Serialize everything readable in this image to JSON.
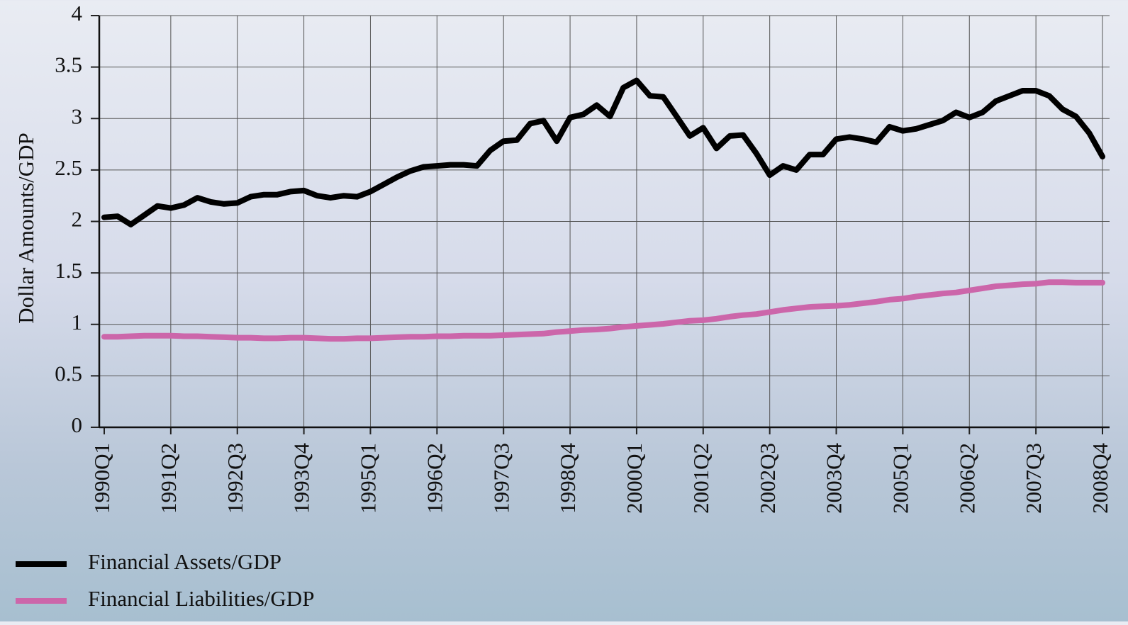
{
  "chart_data": {
    "type": "line",
    "y_label": "Dollar Amounts/GDP",
    "categories": [
      "1990Q1",
      null,
      null,
      null,
      null,
      "1991Q2",
      null,
      null,
      null,
      null,
      "1992Q3",
      null,
      null,
      null,
      null,
      "1993Q4",
      null,
      null,
      null,
      null,
      "1995Q1",
      null,
      null,
      null,
      null,
      "1996Q2",
      null,
      null,
      null,
      null,
      "1997Q3",
      null,
      null,
      null,
      null,
      "1998Q4",
      null,
      null,
      null,
      null,
      "2000Q1",
      null,
      null,
      null,
      null,
      "2001Q2",
      null,
      null,
      null,
      null,
      "2002Q3",
      null,
      null,
      null,
      null,
      "2003Q4",
      null,
      null,
      null,
      null,
      "2005Q1",
      null,
      null,
      null,
      null,
      "2006Q2",
      null,
      null,
      null,
      null,
      "2007Q3",
      null,
      null,
      null,
      null,
      "2008Q4"
    ],
    "series": [
      {
        "name": "Financial Assets/GDP",
        "color": "#000000",
        "values": [
          2.04,
          2.05,
          1.97,
          2.06,
          2.15,
          2.13,
          2.16,
          2.23,
          2.19,
          2.17,
          2.18,
          2.24,
          2.26,
          2.26,
          2.29,
          2.3,
          2.25,
          2.23,
          2.25,
          2.24,
          2.29,
          2.36,
          2.43,
          2.49,
          2.53,
          2.54,
          2.55,
          2.55,
          2.54,
          2.69,
          2.78,
          2.79,
          2.95,
          2.98,
          2.78,
          3.01,
          3.04,
          3.13,
          3.02,
          3.3,
          3.37,
          3.22,
          3.21,
          3.02,
          2.83,
          2.91,
          2.71,
          2.83,
          2.84,
          2.66,
          2.45,
          2.54,
          2.5,
          2.65,
          2.65,
          2.8,
          2.82,
          2.8,
          2.77,
          2.92,
          2.88,
          2.9,
          2.94,
          2.98,
          3.06,
          3.01,
          3.06,
          3.17,
          3.22,
          3.27,
          3.27,
          3.22,
          3.09,
          3.02,
          2.86,
          2.63
        ]
      },
      {
        "name": "Financial Liabilities/GDP",
        "color": "#cc66aa",
        "values": [
          0.88,
          0.88,
          0.885,
          0.89,
          0.89,
          0.89,
          0.885,
          0.885,
          0.88,
          0.875,
          0.87,
          0.87,
          0.865,
          0.865,
          0.87,
          0.87,
          0.865,
          0.86,
          0.86,
          0.865,
          0.865,
          0.87,
          0.875,
          0.88,
          0.88,
          0.885,
          0.885,
          0.89,
          0.89,
          0.89,
          0.895,
          0.9,
          0.905,
          0.91,
          0.925,
          0.935,
          0.945,
          0.95,
          0.96,
          0.975,
          0.985,
          0.995,
          1.005,
          1.02,
          1.035,
          1.04,
          1.055,
          1.075,
          1.09,
          1.1,
          1.12,
          1.14,
          1.155,
          1.17,
          1.175,
          1.18,
          1.19,
          1.205,
          1.22,
          1.24,
          1.25,
          1.27,
          1.285,
          1.3,
          1.31,
          1.33,
          1.35,
          1.37,
          1.38,
          1.39,
          1.395,
          1.41,
          1.41,
          1.405,
          1.405,
          1.405
        ]
      }
    ],
    "ylim": [
      0,
      4
    ],
    "yticks": [
      0,
      0.5,
      1,
      1.5,
      2,
      2.5,
      3,
      3.5,
      4
    ],
    "grid": true,
    "legend": "bottom-left"
  }
}
